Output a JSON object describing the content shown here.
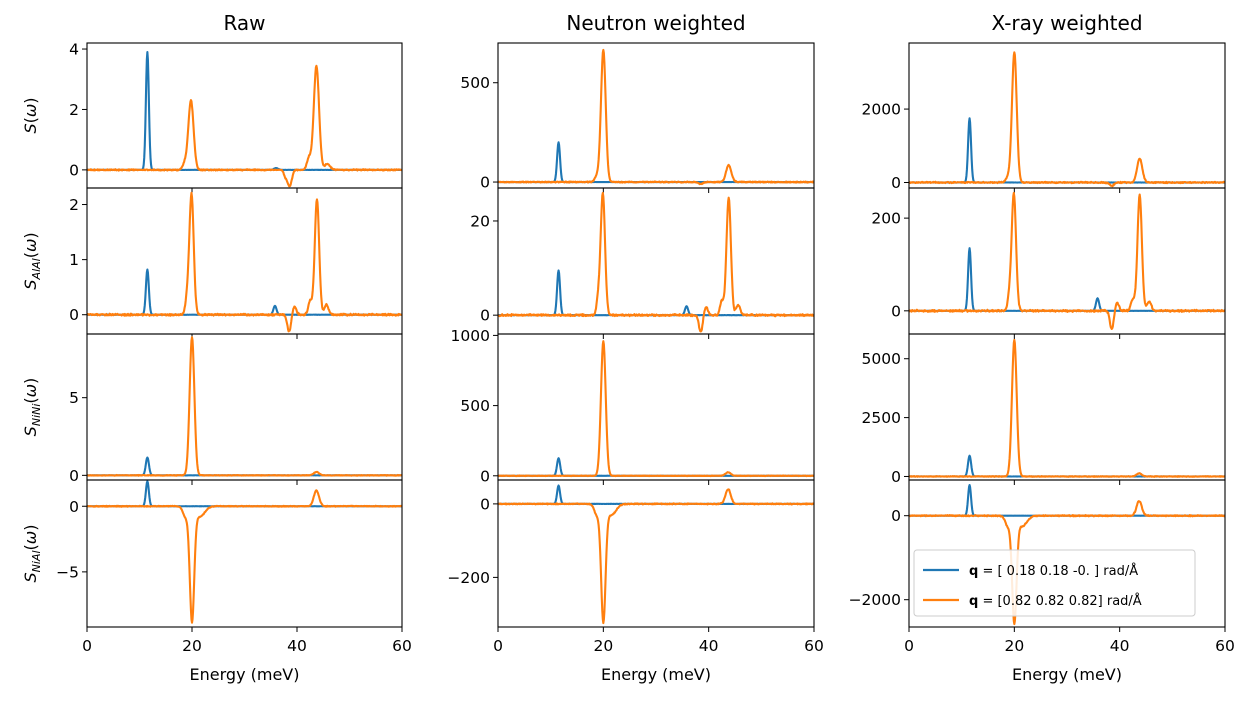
{
  "figure": {
    "column_titles": [
      "Raw",
      "Neutron weighted",
      "X-ray weighted"
    ],
    "row_ylabels": [
      "S(ω)",
      "S_{AlAl}(ω)",
      "S_{NiNi}(ω)",
      "S_{NiAl}(ω)"
    ],
    "xlabel": "Energy (meV)"
  },
  "legend": {
    "location": "lower-right of the bottom X-ray weighted panel",
    "entries": [
      {
        "bold": "q",
        "text": " = [ 0.18  0.18 -0.  ] rad/Å",
        "color": "#1f77b4"
      },
      {
        "bold": "q",
        "text": " = [0.82 0.82 0.82] rad/Å",
        "color": "#ff7f0e"
      }
    ]
  },
  "chart_data": {
    "type": "line",
    "layout": "4 rows x 3 columns, shared x axis per column",
    "xlim": [
      0,
      60
    ],
    "xticks": [
      0,
      20,
      40,
      60
    ],
    "series_names": [
      "q = [ 0.18  0.18 -0.  ] rad/Å",
      "q = [0.82 0.82 0.82] rad/Å"
    ],
    "series_colors": [
      "#1f77b4",
      "#ff7f0e"
    ],
    "panels": [
      {
        "column": "Raw",
        "row": "S(ω)",
        "ylim": [
          -0.6,
          4.2
        ],
        "yticks": [
          0,
          2,
          4
        ],
        "series": [
          {
            "name": "q1",
            "noise": 0.005,
            "baseline": 0,
            "peaks": [
              [
                11.5,
                3.9,
                0.28
              ],
              [
                36,
                0.06,
                0.4
              ]
            ]
          },
          {
            "name": "q2",
            "noise": 0.03,
            "baseline": 0,
            "peaks": [
              [
                19.8,
                2.3,
                0.5
              ],
              [
                18.6,
                0.2,
                0.4
              ],
              [
                43.7,
                3.45,
                0.5
              ],
              [
                42.3,
                0.4,
                0.4
              ],
              [
                45.8,
                0.2,
                0.5
              ],
              [
                38.6,
                -0.55,
                0.4
              ],
              [
                37.8,
                -0.2,
                0.3
              ]
            ]
          }
        ]
      },
      {
        "column": "Raw",
        "row": "S_{AlAl}(ω)",
        "ylim": [
          -0.35,
          2.3
        ],
        "yticks": [
          0,
          1,
          2
        ],
        "series": [
          {
            "name": "q1",
            "noise": 0.003,
            "baseline": 0,
            "peaks": [
              [
                11.5,
                0.82,
                0.28
              ],
              [
                35.8,
                0.16,
                0.3
              ]
            ]
          },
          {
            "name": "q2",
            "noise": 0.025,
            "baseline": 0,
            "peaks": [
              [
                19.9,
                2.2,
                0.42
              ],
              [
                19.0,
                0.25,
                0.3
              ],
              [
                43.8,
                2.1,
                0.42
              ],
              [
                42.5,
                0.25,
                0.35
              ],
              [
                45.6,
                0.18,
                0.4
              ],
              [
                38.5,
                -0.3,
                0.35
              ],
              [
                39.5,
                0.15,
                0.35
              ]
            ]
          }
        ]
      },
      {
        "column": "Raw",
        "row": "S_{NiNi}(ω)",
        "ylim": [
          -0.3,
          9.1
        ],
        "yticks": [
          0,
          5
        ],
        "series": [
          {
            "name": "q1",
            "noise": 0.01,
            "baseline": 0,
            "peaks": [
              [
                11.5,
                1.15,
                0.3
              ]
            ]
          },
          {
            "name": "q2",
            "noise": 0.03,
            "baseline": 0,
            "peaks": [
              [
                20.0,
                8.9,
                0.45
              ],
              [
                43.7,
                0.22,
                0.5
              ]
            ]
          }
        ]
      },
      {
        "column": "Raw",
        "row": "S_{NiAl}(ω)",
        "ylim": [
          -9.2,
          2.0
        ],
        "yticks": [
          -5,
          0
        ],
        "series": [
          {
            "name": "q1",
            "noise": 0.005,
            "baseline": 0,
            "peaks": [
              [
                11.5,
                1.9,
                0.28
              ]
            ]
          },
          {
            "name": "q2",
            "noise": 0.05,
            "baseline": 0,
            "peaks": [
              [
                20.0,
                -8.6,
                0.42
              ],
              [
                18.8,
                -0.8,
                0.5
              ],
              [
                21.5,
                -0.8,
                0.9
              ],
              [
                43.7,
                1.2,
                0.5
              ]
            ]
          }
        ]
      },
      {
        "column": "Neutron weighted",
        "row": "S(ω)",
        "ylim": [
          -30,
          700
        ],
        "yticks": [
          0,
          500
        ],
        "series": [
          {
            "name": "q1",
            "noise": 0.5,
            "baseline": 0,
            "peaks": [
              [
                11.5,
                200,
                0.28
              ]
            ]
          },
          {
            "name": "q2",
            "noise": 4,
            "baseline": 0,
            "peaks": [
              [
                20.0,
                665,
                0.45
              ],
              [
                18.8,
                30,
                0.4
              ],
              [
                43.8,
                85,
                0.5
              ],
              [
                38.5,
                -10,
                0.4
              ]
            ]
          }
        ]
      },
      {
        "column": "Neutron weighted",
        "row": "S_{AlAl}(ω)",
        "ylim": [
          -4,
          27
        ],
        "yticks": [
          0,
          20
        ],
        "series": [
          {
            "name": "q1",
            "noise": 0.05,
            "baseline": 0,
            "peaks": [
              [
                11.5,
                9.5,
                0.28
              ],
              [
                35.8,
                1.9,
                0.3
              ]
            ]
          },
          {
            "name": "q2",
            "noise": 0.3,
            "baseline": 0,
            "peaks": [
              [
                19.9,
                26,
                0.42
              ],
              [
                19.0,
                3,
                0.3
              ],
              [
                43.8,
                25,
                0.42
              ],
              [
                42.5,
                3,
                0.35
              ],
              [
                45.6,
                2.1,
                0.4
              ],
              [
                38.5,
                -3.6,
                0.35
              ],
              [
                39.5,
                1.8,
                0.35
              ]
            ]
          }
        ]
      },
      {
        "column": "Neutron weighted",
        "row": "S_{NiNi}(ω)",
        "ylim": [
          -30,
          1010
        ],
        "yticks": [
          0,
          500,
          1000
        ],
        "series": [
          {
            "name": "q1",
            "noise": 1,
            "baseline": 0,
            "peaks": [
              [
                11.5,
                125,
                0.3
              ]
            ]
          },
          {
            "name": "q2",
            "noise": 3,
            "baseline": 0,
            "peaks": [
              [
                20.0,
                960,
                0.45
              ],
              [
                43.7,
                25,
                0.5
              ]
            ]
          }
        ]
      },
      {
        "column": "Neutron weighted",
        "row": "S_{NiAl}(ω)",
        "ylim": [
          -335,
          65
        ],
        "yticks": [
          -200,
          0
        ],
        "series": [
          {
            "name": "q1",
            "noise": 0.5,
            "baseline": 0,
            "peaks": [
              [
                11.5,
                50,
                0.28
              ]
            ]
          },
          {
            "name": "q2",
            "noise": 2,
            "baseline": 0,
            "peaks": [
              [
                20.0,
                -315,
                0.42
              ],
              [
                18.8,
                -30,
                0.5
              ],
              [
                21.5,
                -30,
                0.9
              ],
              [
                43.7,
                40,
                0.5
              ]
            ]
          }
        ]
      },
      {
        "column": "X-ray weighted",
        "row": "S(ω)",
        "ylim": [
          -150,
          3800
        ],
        "yticks": [
          0,
          2000
        ],
        "series": [
          {
            "name": "q1",
            "noise": 3,
            "baseline": 0,
            "peaks": [
              [
                11.5,
                1750,
                0.28
              ]
            ]
          },
          {
            "name": "q2",
            "noise": 25,
            "baseline": 0,
            "peaks": [
              [
                20.0,
                3550,
                0.45
              ],
              [
                18.8,
                150,
                0.4
              ],
              [
                43.8,
                650,
                0.5
              ],
              [
                38.5,
                -100,
                0.4
              ]
            ]
          }
        ]
      },
      {
        "column": "X-ray weighted",
        "row": "S_{AlAl}(ω)",
        "ylim": [
          -50,
          265
        ],
        "yticks": [
          0,
          200
        ],
        "series": [
          {
            "name": "q1",
            "noise": 0.3,
            "baseline": 0,
            "peaks": [
              [
                11.5,
                135,
                0.28
              ],
              [
                35.8,
                27,
                0.3
              ]
            ]
          },
          {
            "name": "q2",
            "noise": 3,
            "baseline": 0,
            "peaks": [
              [
                19.9,
                255,
                0.42
              ],
              [
                19.0,
                25,
                0.3
              ],
              [
                43.8,
                250,
                0.42
              ],
              [
                42.5,
                25,
                0.35
              ],
              [
                45.6,
                20,
                0.4
              ],
              [
                38.5,
                -40,
                0.35
              ],
              [
                39.5,
                18,
                0.35
              ]
            ]
          }
        ]
      },
      {
        "column": "X-ray weighted",
        "row": "S_{NiNi}(ω)",
        "ylim": [
          -150,
          6050
        ],
        "yticks": [
          0,
          2500,
          5000
        ],
        "series": [
          {
            "name": "q1",
            "noise": 5,
            "baseline": 0,
            "peaks": [
              [
                11.5,
                880,
                0.3
              ]
            ]
          },
          {
            "name": "q2",
            "noise": 20,
            "baseline": 0,
            "peaks": [
              [
                20.0,
                5800,
                0.45
              ],
              [
                43.7,
                130,
                0.5
              ]
            ]
          }
        ]
      },
      {
        "column": "X-ray weighted",
        "row": "S_{NiAl}(ω)",
        "ylim": [
          -2650,
          850
        ],
        "yticks": [
          -2000,
          0
        ],
        "series": [
          {
            "name": "q1",
            "noise": 3,
            "baseline": 0,
            "peaks": [
              [
                11.5,
                730,
                0.28
              ]
            ]
          },
          {
            "name": "q2",
            "noise": 20,
            "baseline": 0,
            "peaks": [
              [
                20.0,
                -2500,
                0.42
              ],
              [
                18.8,
                -250,
                0.5
              ],
              [
                21.5,
                -250,
                0.9
              ],
              [
                43.7,
                350,
                0.5
              ]
            ]
          }
        ]
      }
    ]
  }
}
